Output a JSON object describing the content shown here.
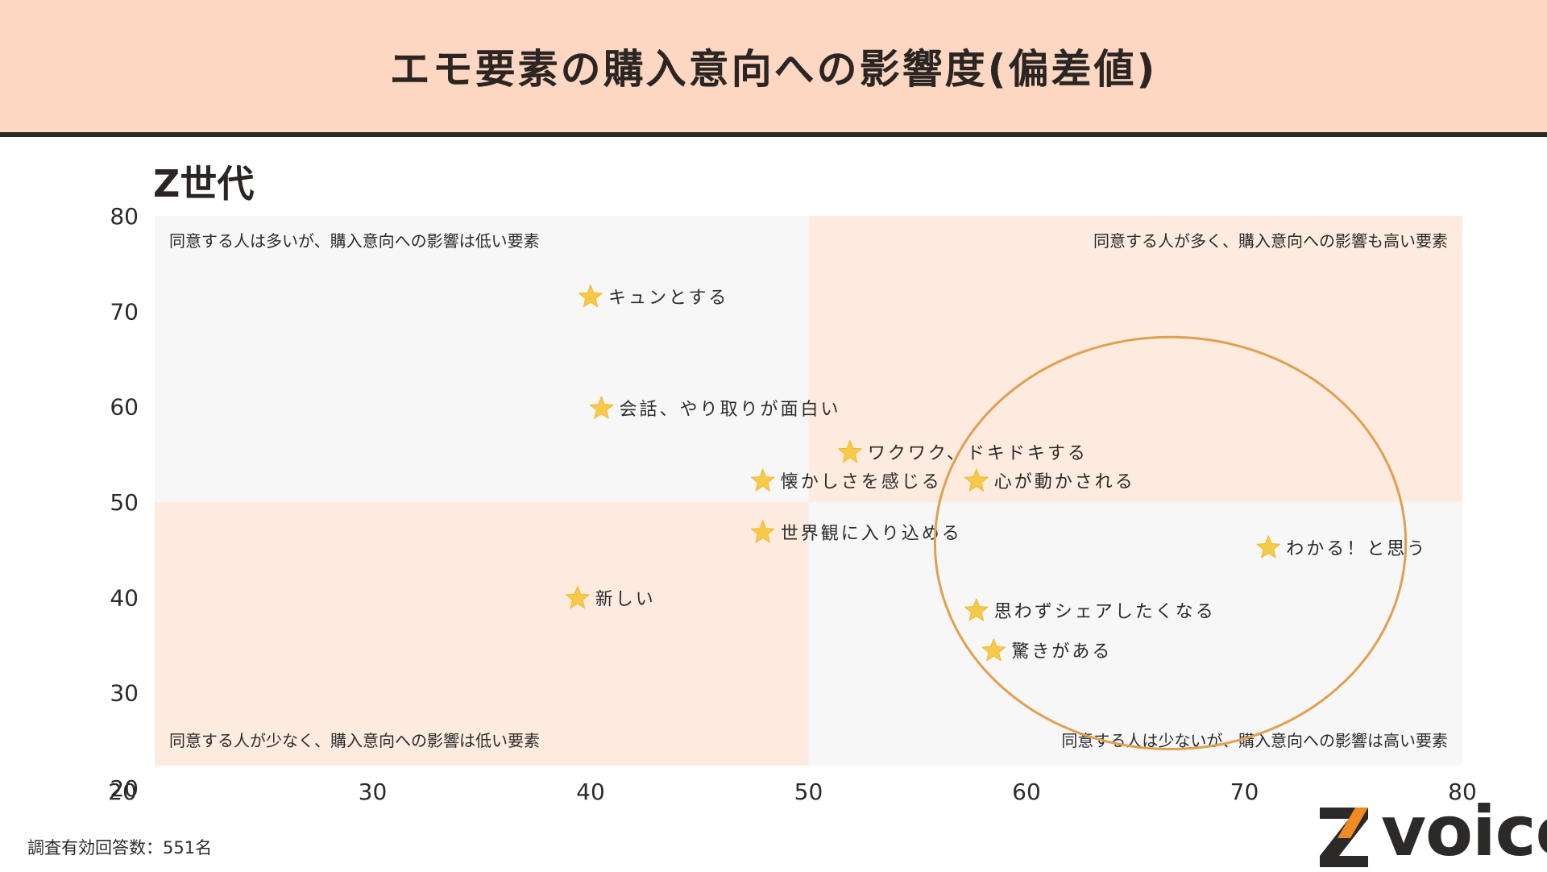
{
  "header": {
    "title": "エモ要素の購入意向への影響度(偏差値)"
  },
  "subtitle": "Z世代",
  "footnote": "調査有効回答数：551名",
  "logo": {
    "text": "voice",
    "mark": "Z"
  },
  "colors": {
    "header_bg": "#fdd7c1",
    "quadrant_peach": "#fdebe0",
    "quadrant_gray": "#f7f7f7",
    "star": "#f7c948",
    "circle": "#e0a050"
  },
  "chart_data": {
    "type": "scatter",
    "xlim": [
      20,
      80
    ],
    "ylim": [
      20,
      80
    ],
    "x_ticks": [
      30,
      40,
      50,
      60,
      70,
      80
    ],
    "y_ticks": [
      20,
      30,
      40,
      50,
      60,
      70,
      80
    ],
    "x_divider": 50,
    "y_divider": 50,
    "grid": false,
    "quadrant_labels": {
      "top_left": "同意する人は多いが、購入意向への影響は低い要素",
      "top_right": "同意する人が多く、購入意向への影響も高い要素",
      "bottom_left": "同意する人が少なく、購入意向への影響は低い要素",
      "bottom_right": "同意する人は少ないが、購入意向への影響は高い要素"
    },
    "points": [
      {
        "label": "キュンとする",
        "x": 40.0,
        "y": 71.5
      },
      {
        "label": "会話、やり取りが面白い",
        "x": 40.5,
        "y": 59.8
      },
      {
        "label": "ワクワク、ドキドキする",
        "x": 51.9,
        "y": 55.2
      },
      {
        "label": "懐かしさを感じる",
        "x": 47.9,
        "y": 52.2
      },
      {
        "label": "心が動かされる",
        "x": 57.7,
        "y": 52.2
      },
      {
        "label": "世界観に入り込める",
        "x": 47.9,
        "y": 46.8
      },
      {
        "label": "わかる！と思う",
        "x": 71.1,
        "y": 45.2
      },
      {
        "label": "新しい",
        "x": 39.4,
        "y": 39.9
      },
      {
        "label": "思わずシェアしたくなる",
        "x": 57.7,
        "y": 38.6
      },
      {
        "label": "驚きがある",
        "x": 58.5,
        "y": 34.4
      }
    ],
    "highlight_ellipse": {
      "cx": 66.6,
      "cy": 45.7,
      "rx": 10.8,
      "ry": 21.6
    }
  }
}
